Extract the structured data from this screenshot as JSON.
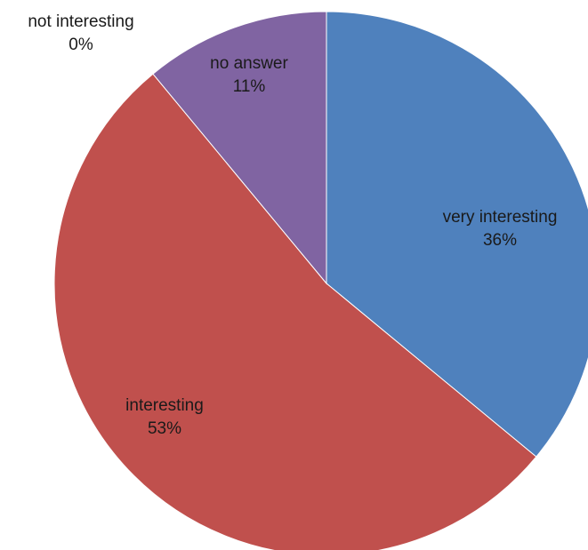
{
  "chart_data": {
    "type": "pie",
    "title": "",
    "slices": [
      {
        "label": "very interesting",
        "value": 36,
        "value_label": "36%",
        "color": "#4F81BD"
      },
      {
        "label": "interesting",
        "value": 53,
        "value_label": "53%",
        "color": "#C0504D"
      },
      {
        "label": "not interesting",
        "value": 0,
        "value_label": "0%",
        "color": "#9BBB59"
      },
      {
        "label": "no answer",
        "value": 11,
        "value_label": "11%",
        "color": "#8064A2"
      }
    ],
    "start_angle": "12 o'clock",
    "direction": "clockwise",
    "legend": "none",
    "data_labels": "category name and percentage"
  }
}
